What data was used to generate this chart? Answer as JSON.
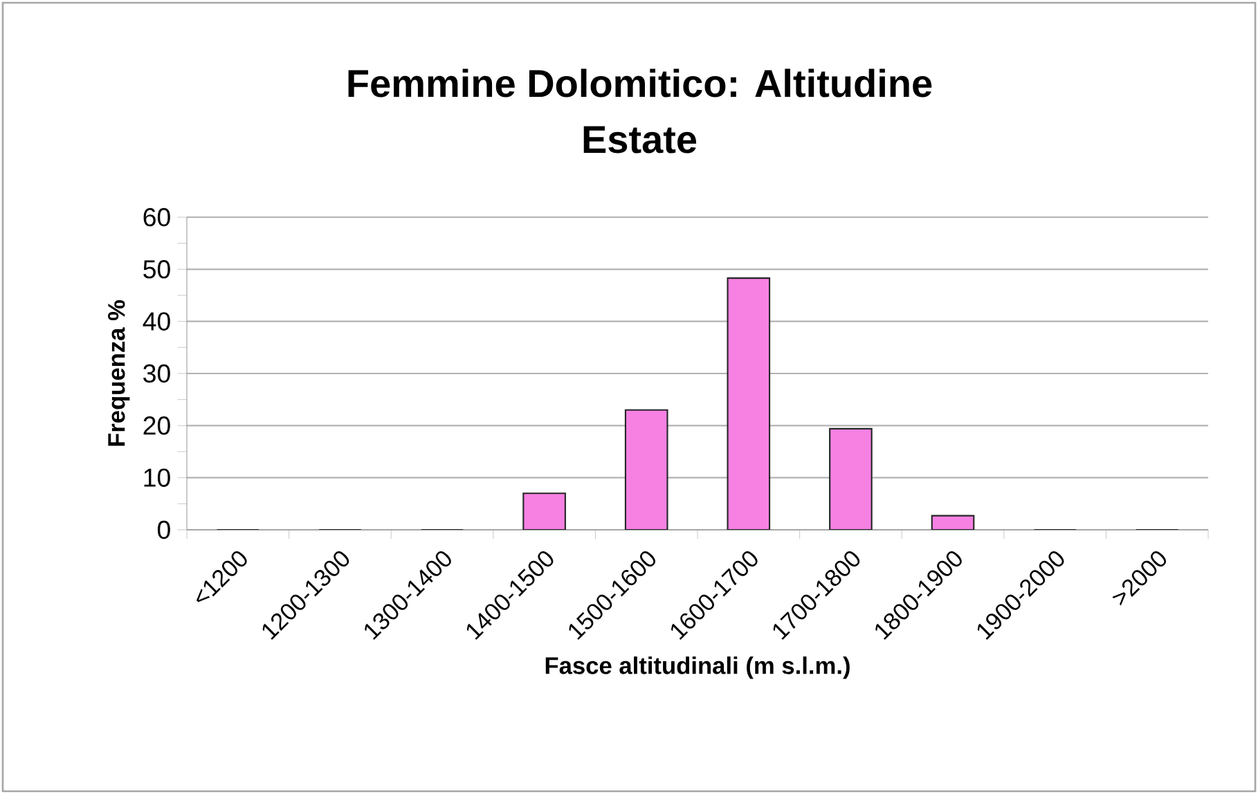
{
  "chart_data": {
    "type": "bar",
    "title": "Femmine Dolomitico:  Altitudine",
    "subtitle": "Estate",
    "xlabel": "Fasce altitudinali  (m  s.l.m.)",
    "ylabel": "Frequenza %",
    "categories": [
      "<1200",
      "1200-1300",
      "1300-1400",
      "1400-1500",
      "1500-1600",
      "1600-1700",
      "1700-1800",
      "1800-1900",
      "1900-2000",
      ">2000"
    ],
    "values": [
      0,
      0,
      0,
      7,
      23,
      48.3,
      19.4,
      2.7,
      0,
      0
    ],
    "color": "#f781e3",
    "ylim": [
      0,
      60
    ],
    "yticks": [
      0,
      10,
      20,
      30,
      40,
      50,
      60
    ],
    "grid": "y"
  }
}
